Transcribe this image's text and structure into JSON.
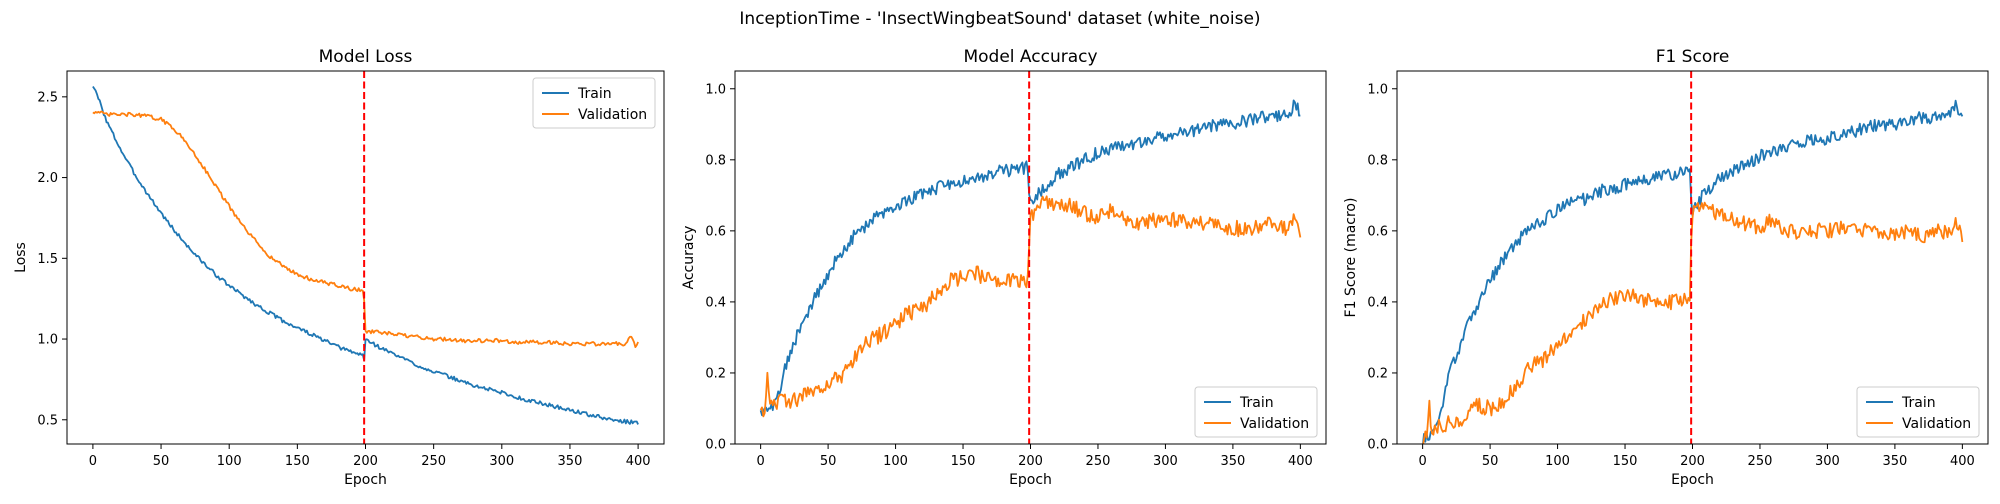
{
  "figure": {
    "suptitle": "InceptionTime - 'InsectWingbeatSound' dataset (white_noise)"
  },
  "colors": {
    "train": "#1f77b4",
    "validation": "#ff7f0e",
    "marker_line": "#ff0000"
  },
  "chart_data": [
    {
      "type": "line",
      "title": "Model Loss",
      "xlabel": "Epoch",
      "ylabel": "Loss",
      "xlim": [
        -19,
        419
      ],
      "ylim": [
        0.35,
        2.66
      ],
      "xticks": [
        0,
        50,
        100,
        150,
        200,
        250,
        300,
        350,
        400
      ],
      "yticks": [
        0.5,
        1.0,
        1.5,
        2.0,
        2.5
      ],
      "ytick_labels": [
        "0.5",
        "1.0",
        "1.5",
        "2.0",
        "2.5"
      ],
      "vline_x": 199,
      "legend": {
        "position": "top-right",
        "entries": [
          "Train",
          "Validation"
        ]
      },
      "series": [
        {
          "name": "Train",
          "color": "#1f77b4",
          "x": [
            0,
            5,
            10,
            20,
            30,
            40,
            50,
            60,
            70,
            80,
            90,
            100,
            110,
            120,
            130,
            140,
            150,
            160,
            170,
            180,
            190,
            198,
            199,
            200,
            210,
            220,
            230,
            240,
            250,
            260,
            270,
            280,
            290,
            300,
            310,
            320,
            330,
            340,
            350,
            360,
            370,
            380,
            390,
            400
          ],
          "y": [
            2.57,
            2.47,
            2.35,
            2.18,
            2.03,
            1.9,
            1.78,
            1.67,
            1.57,
            1.48,
            1.4,
            1.33,
            1.27,
            1.21,
            1.16,
            1.11,
            1.07,
            1.03,
            0.99,
            0.95,
            0.92,
            0.9,
            0.87,
            1.0,
            0.95,
            0.91,
            0.87,
            0.83,
            0.8,
            0.77,
            0.74,
            0.71,
            0.69,
            0.67,
            0.64,
            0.62,
            0.6,
            0.58,
            0.56,
            0.54,
            0.52,
            0.5,
            0.49,
            0.48
          ],
          "noise": 0.012
        },
        {
          "name": "Validation",
          "color": "#ff7f0e",
          "x": [
            0,
            10,
            20,
            30,
            40,
            50,
            60,
            70,
            80,
            90,
            100,
            110,
            120,
            130,
            140,
            150,
            160,
            170,
            180,
            190,
            198,
            199,
            200,
            210,
            220,
            230,
            240,
            250,
            260,
            270,
            280,
            290,
            300,
            310,
            320,
            330,
            340,
            350,
            360,
            370,
            380,
            390,
            395,
            398,
            400
          ],
          "y": [
            2.41,
            2.39,
            2.39,
            2.39,
            2.38,
            2.36,
            2.3,
            2.2,
            2.08,
            1.95,
            1.82,
            1.7,
            1.6,
            1.51,
            1.45,
            1.4,
            1.37,
            1.35,
            1.33,
            1.31,
            1.3,
            1.24,
            1.05,
            1.04,
            1.03,
            1.02,
            1.01,
            1.0,
            1.0,
            0.99,
            0.99,
            0.99,
            0.99,
            0.98,
            0.98,
            0.98,
            0.98,
            0.97,
            0.97,
            0.97,
            0.97,
            0.97,
            1.01,
            0.95,
            0.99
          ],
          "noise": 0.012
        }
      ]
    },
    {
      "type": "line",
      "title": "Model Accuracy",
      "xlabel": "Epoch",
      "ylabel": "Accuracy",
      "xlim": [
        -19,
        419
      ],
      "ylim": [
        0.0,
        1.05
      ],
      "xticks": [
        0,
        50,
        100,
        150,
        200,
        250,
        300,
        350,
        400
      ],
      "yticks": [
        0.0,
        0.2,
        0.4,
        0.6,
        0.8,
        1.0
      ],
      "ytick_labels": [
        "0.0",
        "0.2",
        "0.4",
        "0.6",
        "0.8",
        "1.0"
      ],
      "vline_x": 199,
      "legend": {
        "position": "bottom-right",
        "entries": [
          "Train",
          "Validation"
        ]
      },
      "series": [
        {
          "name": "Train",
          "color": "#1f77b4",
          "x": [
            0,
            5,
            10,
            15,
            20,
            30,
            40,
            50,
            60,
            70,
            80,
            90,
            100,
            110,
            120,
            130,
            140,
            150,
            160,
            170,
            180,
            190,
            198,
            199,
            200,
            210,
            220,
            230,
            240,
            250,
            260,
            270,
            280,
            290,
            300,
            310,
            320,
            330,
            340,
            350,
            360,
            370,
            380,
            390,
            395,
            400
          ],
          "y": [
            0.09,
            0.09,
            0.11,
            0.17,
            0.24,
            0.33,
            0.41,
            0.48,
            0.54,
            0.59,
            0.62,
            0.65,
            0.67,
            0.69,
            0.7,
            0.72,
            0.73,
            0.74,
            0.75,
            0.76,
            0.77,
            0.77,
            0.78,
            0.7,
            0.68,
            0.72,
            0.76,
            0.78,
            0.8,
            0.82,
            0.83,
            0.84,
            0.85,
            0.86,
            0.87,
            0.88,
            0.88,
            0.89,
            0.9,
            0.9,
            0.91,
            0.92,
            0.92,
            0.93,
            0.95,
            0.94
          ],
          "noise": 0.018
        },
        {
          "name": "Validation",
          "color": "#ff7f0e",
          "x": [
            0,
            3,
            5,
            7,
            10,
            20,
            30,
            40,
            50,
            60,
            70,
            80,
            90,
            100,
            110,
            120,
            130,
            140,
            150,
            160,
            170,
            180,
            190,
            198,
            199,
            200,
            205,
            210,
            220,
            230,
            240,
            250,
            260,
            270,
            280,
            290,
            300,
            310,
            320,
            330,
            340,
            350,
            360,
            370,
            380,
            390,
            395,
            400
          ],
          "y": [
            0.09,
            0.09,
            0.21,
            0.13,
            0.12,
            0.12,
            0.13,
            0.16,
            0.17,
            0.19,
            0.24,
            0.29,
            0.31,
            0.34,
            0.37,
            0.38,
            0.42,
            0.46,
            0.47,
            0.48,
            0.46,
            0.46,
            0.46,
            0.46,
            0.55,
            0.63,
            0.67,
            0.68,
            0.68,
            0.67,
            0.65,
            0.64,
            0.66,
            0.63,
            0.62,
            0.63,
            0.63,
            0.63,
            0.62,
            0.62,
            0.61,
            0.61,
            0.6,
            0.61,
            0.62,
            0.6,
            0.64,
            0.6
          ],
          "noise": 0.022
        }
      ]
    },
    {
      "type": "line",
      "title": "F1 Score",
      "xlabel": "Epoch",
      "ylabel": "F1 Score (macro)",
      "xlim": [
        -19,
        419
      ],
      "ylim": [
        0.0,
        1.05
      ],
      "xticks": [
        0,
        50,
        100,
        150,
        200,
        250,
        300,
        350,
        400
      ],
      "yticks": [
        0.0,
        0.2,
        0.4,
        0.6,
        0.8,
        1.0
      ],
      "ytick_labels": [
        "0.0",
        "0.2",
        "0.4",
        "0.6",
        "0.8",
        "1.0"
      ],
      "vline_x": 199,
      "legend": {
        "position": "bottom-right",
        "entries": [
          "Train",
          "Validation"
        ]
      },
      "series": [
        {
          "name": "Train",
          "color": "#1f77b4",
          "x": [
            0,
            5,
            10,
            15,
            20,
            30,
            40,
            50,
            60,
            70,
            80,
            90,
            100,
            110,
            120,
            130,
            140,
            150,
            160,
            170,
            180,
            190,
            198,
            199,
            200,
            210,
            220,
            230,
            240,
            250,
            260,
            270,
            280,
            290,
            300,
            310,
            320,
            330,
            340,
            350,
            360,
            370,
            380,
            390,
            395,
            400
          ],
          "y": [
            0.01,
            0.02,
            0.05,
            0.12,
            0.2,
            0.3,
            0.39,
            0.46,
            0.52,
            0.57,
            0.61,
            0.63,
            0.66,
            0.68,
            0.69,
            0.71,
            0.72,
            0.73,
            0.74,
            0.75,
            0.76,
            0.76,
            0.77,
            0.68,
            0.66,
            0.71,
            0.75,
            0.77,
            0.79,
            0.81,
            0.82,
            0.84,
            0.85,
            0.86,
            0.86,
            0.87,
            0.88,
            0.89,
            0.9,
            0.9,
            0.91,
            0.92,
            0.92,
            0.93,
            0.95,
            0.94
          ],
          "noise": 0.018
        },
        {
          "name": "Validation",
          "color": "#ff7f0e",
          "x": [
            0,
            3,
            5,
            7,
            10,
            20,
            30,
            40,
            50,
            60,
            70,
            80,
            90,
            100,
            110,
            120,
            130,
            140,
            150,
            160,
            170,
            180,
            190,
            198,
            199,
            200,
            205,
            210,
            220,
            230,
            240,
            250,
            260,
            270,
            280,
            290,
            300,
            310,
            320,
            330,
            340,
            350,
            360,
            370,
            380,
            390,
            395,
            400
          ],
          "y": [
            0.01,
            0.02,
            0.1,
            0.04,
            0.05,
            0.06,
            0.07,
            0.11,
            0.1,
            0.12,
            0.17,
            0.22,
            0.24,
            0.28,
            0.32,
            0.35,
            0.38,
            0.41,
            0.42,
            0.41,
            0.4,
            0.4,
            0.4,
            0.41,
            0.55,
            0.65,
            0.67,
            0.66,
            0.65,
            0.63,
            0.62,
            0.61,
            0.63,
            0.6,
            0.59,
            0.6,
            0.6,
            0.61,
            0.6,
            0.6,
            0.59,
            0.59,
            0.6,
            0.58,
            0.6,
            0.59,
            0.63,
            0.59
          ],
          "noise": 0.022
        }
      ]
    }
  ]
}
